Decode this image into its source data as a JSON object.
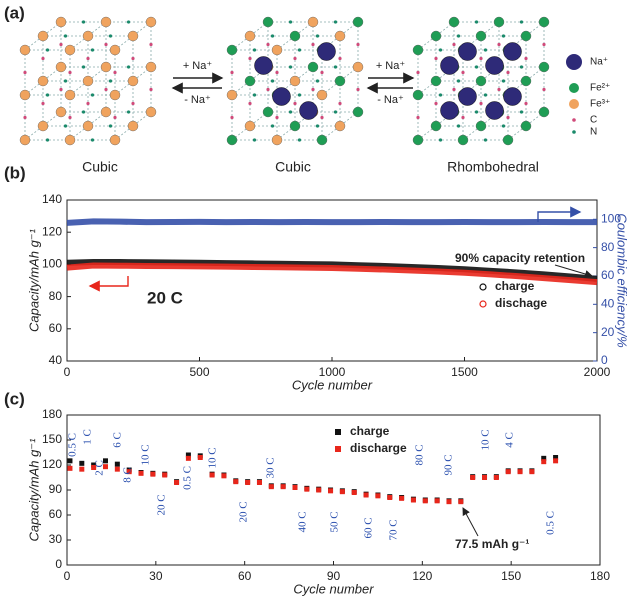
{
  "panel_a": {
    "panel_label": "(a)",
    "arrows": [
      {
        "forward": "+ Na⁺",
        "backward": "- Na⁺"
      },
      {
        "forward": "+ Na⁺",
        "backward": "- Na⁺"
      }
    ],
    "structures": [
      "Cubic",
      "Cubic",
      "Rhombohedral"
    ],
    "legend": [
      "Na⁺",
      "Fe²⁺",
      "Fe³⁺",
      "C",
      "N"
    ]
  },
  "chart_data": [
    {
      "type": "scatter",
      "panel_label": "(b)",
      "xlabel": "Cycle number",
      "ylabel": "Capacity/mAh g⁻¹",
      "y2label": "Coulombic efficiency/%",
      "x": [
        0,
        100,
        200,
        300,
        400,
        500,
        600,
        700,
        800,
        900,
        1000,
        1100,
        1200,
        1300,
        1400,
        1500,
        1600,
        1700,
        1800,
        1900,
        2000
      ],
      "series": [
        {
          "name": "charge",
          "color": "#111111",
          "values": [
            101,
            101.5,
            101.5,
            101.3,
            101.2,
            101,
            100.8,
            100.6,
            100.4,
            100.2,
            100,
            99.5,
            99,
            98.4,
            97.8,
            97,
            96,
            95,
            93.8,
            92.5,
            91
          ]
        },
        {
          "name": "dischage",
          "color": "#e8261b",
          "values": [
            98,
            99.3,
            99.2,
            99,
            98.9,
            98.8,
            98.6,
            98.4,
            98.2,
            98,
            97.8,
            97.3,
            96.8,
            96.2,
            95.6,
            94.8,
            93.8,
            92.7,
            91.5,
            90.2,
            89
          ]
        },
        {
          "color": "#3550a8",
          "axis": "y2",
          "values": [
            97.5,
            98.5,
            98.3,
            98,
            98.1,
            98.2,
            98,
            98.1,
            98,
            98.1,
            98,
            98,
            98.1,
            98,
            98,
            98.1,
            98,
            98,
            98.1,
            98,
            98
          ]
        }
      ],
      "xlim": [
        0,
        2000
      ],
      "xticks": [
        0,
        500,
        1000,
        1500,
        2000
      ],
      "ylim": [
        40,
        140
      ],
      "yticks": [
        40,
        60,
        80,
        100,
        120,
        140
      ],
      "y2lim": [
        0,
        113.6
      ],
      "y2ticks": [
        0,
        20,
        40,
        60,
        80,
        100
      ],
      "annotations": [
        "90% capacity retention",
        "20 C"
      ]
    },
    {
      "type": "scatter",
      "panel_label": "(c)",
      "xlabel": "Cycle number",
      "ylabel": "Capacity/mAh g⁻¹",
      "x": [
        1,
        5,
        9,
        13,
        17,
        21,
        25,
        29,
        33,
        37,
        41,
        45,
        49,
        53,
        57,
        61,
        65,
        69,
        73,
        77,
        81,
        85,
        89,
        93,
        97,
        101,
        105,
        109,
        113,
        117,
        121,
        125,
        129,
        133,
        137,
        141,
        145,
        149,
        153,
        157,
        161,
        165
      ],
      "series": [
        {
          "name": "charge",
          "color": "#111111",
          "values": [
            125,
            122,
            120,
            125,
            121,
            114,
            111,
            110,
            109,
            100,
            132,
            131,
            109,
            108,
            101,
            100,
            100,
            95,
            95,
            94,
            92,
            91,
            90,
            89,
            88,
            85,
            84,
            82,
            81,
            79,
            78,
            78,
            77,
            77,
            106,
            106,
            106,
            113,
            113,
            113,
            128,
            129
          ]
        },
        {
          "name": "discharge",
          "color": "#e8261b",
          "values": [
            116,
            115,
            117,
            118,
            115,
            112,
            110,
            109,
            108,
            99,
            128,
            129,
            108,
            107,
            100,
            99,
            99,
            94,
            94,
            93,
            91,
            90,
            89,
            88,
            87,
            84,
            83,
            81,
            80,
            78,
            77,
            77,
            76,
            76,
            105,
            105,
            105,
            112,
            112,
            112,
            124,
            125
          ]
        }
      ],
      "xlim": [
        0,
        180
      ],
      "xticks": [
        0,
        30,
        60,
        90,
        120,
        150,
        180
      ],
      "ylim": [
        0,
        180
      ],
      "yticks": [
        0,
        30,
        60,
        90,
        120,
        150,
        180
      ],
      "rate_labels": [
        "0.5 C",
        "1 C",
        "2 C",
        "6 C",
        "8 C",
        "10 C",
        "20 C",
        "0.5 C",
        "10 C",
        "20 C",
        "30 C",
        "40 C",
        "50 C",
        "60 C",
        "70 C",
        "80 C",
        "90 C",
        "10 C",
        "4 C",
        "0.5 C"
      ],
      "annotations": [
        "77.5 mAh g⁻¹"
      ]
    }
  ]
}
